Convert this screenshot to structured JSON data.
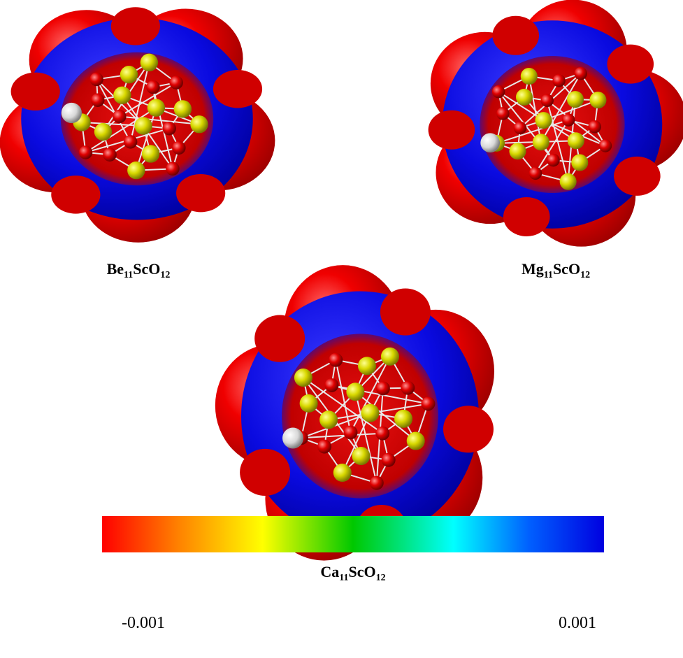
{
  "molecules": [
    {
      "label": [
        "Be",
        "11",
        "ScO",
        "12"
      ]
    },
    {
      "label": [
        "Mg",
        "11",
        "ScO",
        "12"
      ]
    },
    {
      "label": [
        "Ca",
        "11",
        "ScO",
        "12"
      ]
    }
  ],
  "colorbar": {
    "min": -0.001,
    "max": 0.001
  }
}
